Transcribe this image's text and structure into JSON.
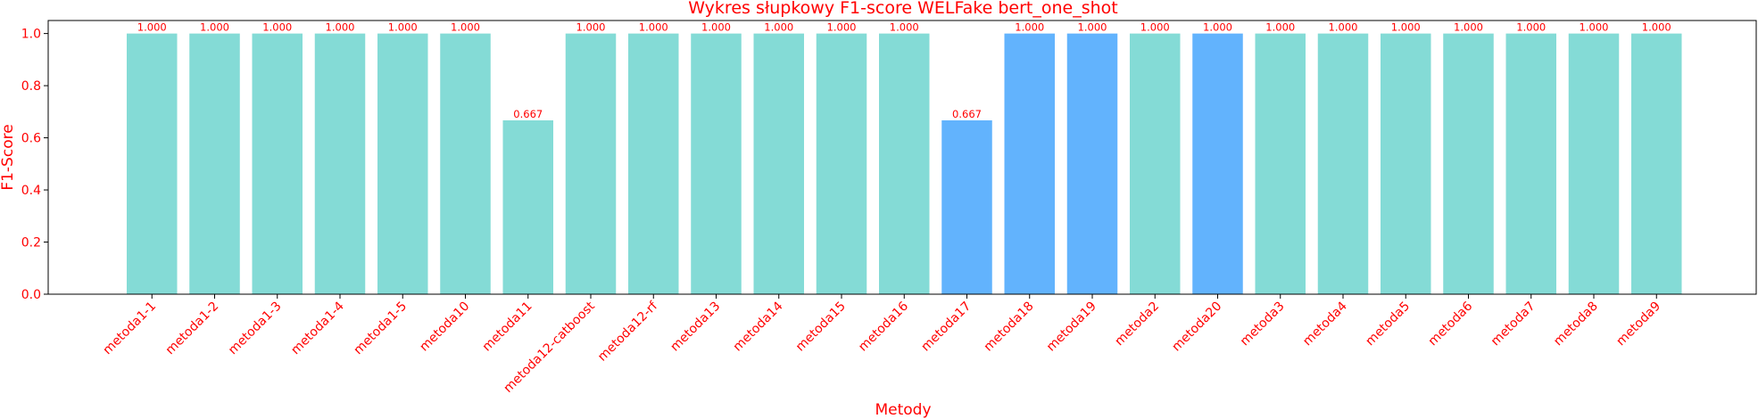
{
  "chart_data": {
    "type": "bar",
    "title": "Wykres słupkowy F1-score WELFake bert_one_shot",
    "xlabel": "Metody",
    "ylabel": "F1-Score",
    "ylim": [
      0,
      1.05
    ],
    "yticks": [
      "0.0",
      "0.2",
      "0.4",
      "0.6",
      "0.8",
      "1.0"
    ],
    "grid": false,
    "categories": [
      "metoda1-1",
      "metoda1-2",
      "metoda1-3",
      "metoda1-4",
      "metoda1-5",
      "metoda10",
      "metoda11",
      "metoda12-catboost",
      "metoda12-rf",
      "metoda13",
      "metoda14",
      "metoda15",
      "metoda16",
      "metoda17",
      "metoda18",
      "metoda19",
      "metoda2",
      "metoda20",
      "metoda3",
      "metoda4",
      "metoda5",
      "metoda6",
      "metoda7",
      "metoda8",
      "metoda9"
    ],
    "values": [
      1.0,
      1.0,
      1.0,
      1.0,
      1.0,
      1.0,
      0.667,
      1.0,
      1.0,
      1.0,
      1.0,
      1.0,
      1.0,
      0.667,
      1.0,
      1.0,
      1.0,
      1.0,
      1.0,
      1.0,
      1.0,
      1.0,
      1.0,
      1.0,
      1.0
    ],
    "value_labels": [
      "1.000",
      "1.000",
      "1.000",
      "1.000",
      "1.000",
      "1.000",
      "0.667",
      "1.000",
      "1.000",
      "1.000",
      "1.000",
      "1.000",
      "1.000",
      "0.667",
      "1.000",
      "1.000",
      "1.000",
      "1.000",
      "1.000",
      "1.000",
      "1.000",
      "1.000",
      "1.000",
      "1.000",
      "1.000"
    ],
    "bar_colors": [
      "#84dbd6",
      "#84dbd6",
      "#84dbd6",
      "#84dbd6",
      "#84dbd6",
      "#84dbd6",
      "#84dbd6",
      "#84dbd6",
      "#84dbd6",
      "#84dbd6",
      "#84dbd6",
      "#84dbd6",
      "#84dbd6",
      "#62b3fd",
      "#62b3fd",
      "#62b3fd",
      "#84dbd6",
      "#62b3fd",
      "#84dbd6",
      "#84dbd6",
      "#84dbd6",
      "#84dbd6",
      "#84dbd6",
      "#84dbd6",
      "#84dbd6"
    ],
    "text_color": "#ff0000",
    "axis_color": "#000000"
  }
}
